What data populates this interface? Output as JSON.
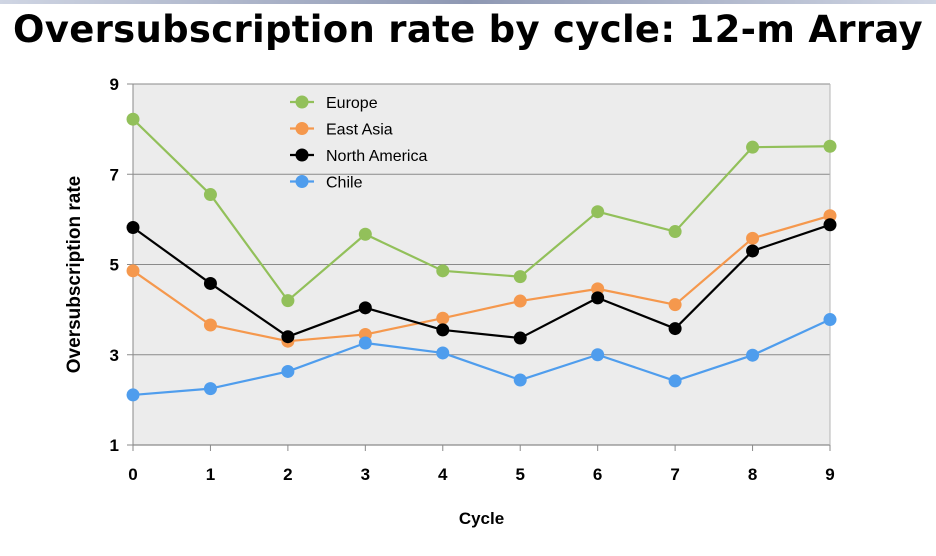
{
  "chart_data": {
    "type": "line",
    "title": "Oversubscription rate by cycle: 12-m Array",
    "xlabel": "Cycle",
    "ylabel": "Oversubscription rate",
    "x": [
      0,
      1,
      2,
      3,
      4,
      5,
      6,
      7,
      8,
      9
    ],
    "xlim": [
      0,
      9
    ],
    "ylim": [
      1,
      9
    ],
    "yticks": [
      1,
      3,
      5,
      7,
      9
    ],
    "grid": true,
    "legend_position": "top-left",
    "background_color": "#ececec",
    "series": [
      {
        "name": "Europe",
        "color": "#92c05a",
        "values": [
          8.22,
          6.55,
          4.2,
          5.67,
          4.86,
          4.73,
          6.17,
          5.73,
          7.6,
          7.62
        ]
      },
      {
        "name": "East Asia",
        "color": "#f5984d",
        "values": [
          4.86,
          3.66,
          3.3,
          3.45,
          3.81,
          4.19,
          4.46,
          4.11,
          5.58,
          6.08
        ]
      },
      {
        "name": "North America",
        "color": "#000000",
        "values": [
          5.82,
          4.58,
          3.4,
          4.04,
          3.55,
          3.37,
          4.26,
          3.58,
          5.3,
          5.88
        ]
      },
      {
        "name": "Chile",
        "color": "#4f9ded",
        "values": [
          2.11,
          2.25,
          2.63,
          3.26,
          3.04,
          2.44,
          3.0,
          2.42,
          2.99,
          3.78
        ]
      }
    ]
  }
}
